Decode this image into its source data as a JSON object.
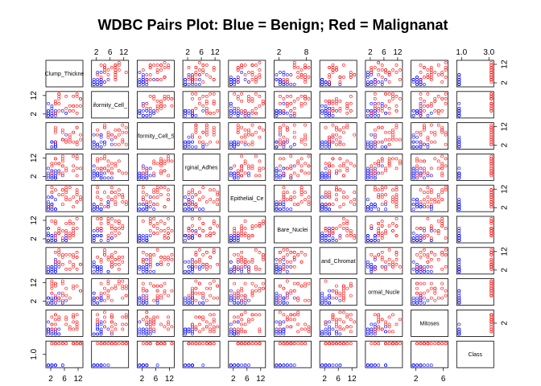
{
  "chart_data": {
    "type": "scatter",
    "title": "WDBC Pairs Plot: Blue = Benign; Red = Malignanat",
    "variables": [
      "Clump_Thickness",
      "Uniformity_Cell_Size",
      "Uniformity_Cell_Shape",
      "Marginal_Adhesion",
      "Single_Epithelial_Cell_Size",
      "Bare_Nuclei",
      "Bland_Chromatin",
      "Normal_Nucleoli",
      "Mitoses",
      "Class"
    ],
    "variable_labels": [
      "Clump_Thickne",
      "iformity_Cell_",
      "iformity_Cell_S",
      "rginal_Adhes",
      "Epithelial_Ce",
      "Bare_Nuclei",
      "and_Chromat",
      "ormal_Nucle",
      "Mitoses",
      "Class"
    ],
    "ranges": [
      [
        1,
        10
      ],
      [
        1,
        10
      ],
      [
        1,
        10
      ],
      [
        1,
        10
      ],
      [
        1,
        10
      ],
      [
        1,
        10
      ],
      [
        1,
        10
      ],
      [
        1,
        10
      ],
      [
        1,
        10
      ],
      [
        1,
        2
      ]
    ],
    "top_ticks": [
      null,
      [
        "2",
        "6",
        "12"
      ],
      null,
      [
        "2",
        "6",
        "12"
      ],
      null,
      [
        "2",
        "8"
      ],
      null,
      [
        "2",
        "6",
        "12"
      ],
      null,
      [
        "1.0",
        "3.0"
      ]
    ],
    "bottom_ticks": [
      [
        "2",
        "6",
        "12"
      ],
      null,
      [
        "2",
        "6",
        "12"
      ],
      null,
      [
        "2",
        "6",
        "12"
      ],
      null,
      [
        "2",
        "6",
        "12"
      ],
      null,
      [
        "2",
        "6"
      ],
      null
    ],
    "left_ticks": [
      null,
      [
        "2",
        "12"
      ],
      null,
      [
        "2",
        "12"
      ],
      null,
      [
        "2",
        "12"
      ],
      null,
      [
        "2",
        "12"
      ],
      null,
      [
        "1.0"
      ]
    ],
    "right_ticks": [
      [
        "2",
        "12"
      ],
      null,
      [
        "2",
        "12"
      ],
      null,
      [
        "2",
        "12"
      ],
      null,
      [
        "2",
        "12"
      ],
      null,
      [
        "2"
      ],
      null
    ],
    "series": [
      {
        "name": "Benign",
        "color": "#0000ff"
      },
      {
        "name": "Malignant",
        "color": "#ff0000"
      }
    ],
    "grid": false
  }
}
